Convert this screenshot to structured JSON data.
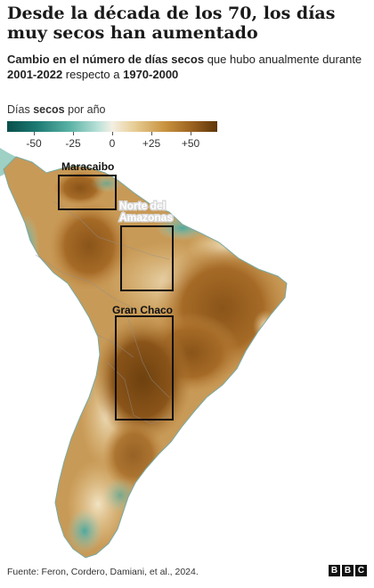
{
  "title": "Desde la década de los 70, los días muy secos han aumentado",
  "subtitle": {
    "part1": "Cambio en el número de días secos",
    "part2": " que hubo anualmente durante ",
    "part3": "2001-2022",
    "part4": " respecto a ",
    "part5": "1970-2000"
  },
  "legend": {
    "title_pre": "Días ",
    "title_bold": "secos",
    "title_post": " por año",
    "ticks": [
      "-50",
      "-25",
      "0",
      "+25",
      "+50"
    ]
  },
  "regions": [
    {
      "name": "Maracaibo"
    },
    {
      "name_line1": "Norte del",
      "name_line2": "Amazonas"
    },
    {
      "name": "Gran Chaco"
    }
  ],
  "footer": {
    "source": "Fuente: Feron, Cordero, Damiani, et al., 2024.",
    "logo": [
      "B",
      "B",
      "C"
    ]
  }
}
